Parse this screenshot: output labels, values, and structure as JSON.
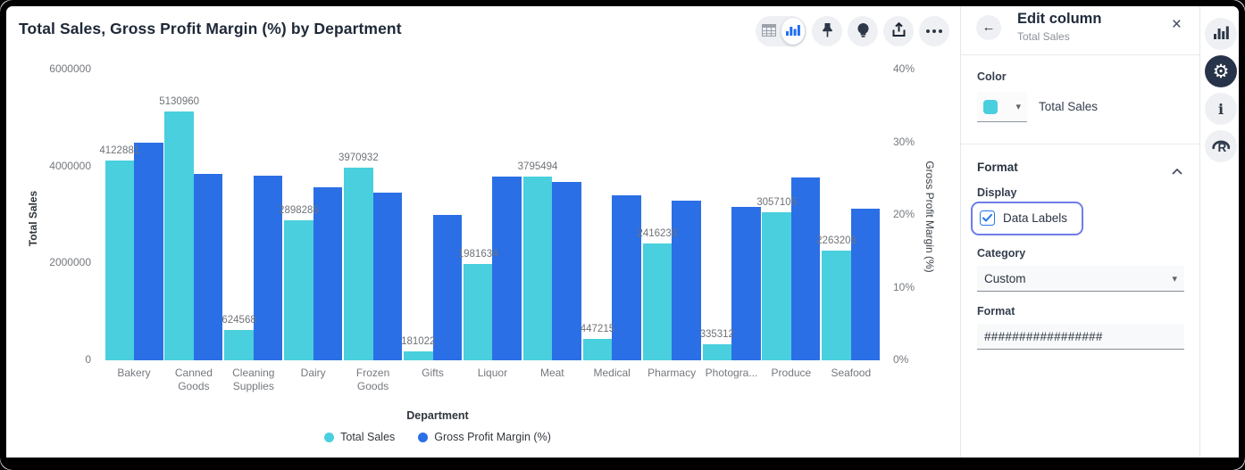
{
  "chart": {
    "title": "Total Sales, Gross Profit Margin (%) by Department",
    "toolbar_icons": [
      "table-icon",
      "bar-chart-icon",
      "pin-icon",
      "lightbulb-icon",
      "share-icon",
      "ellipsis-icon"
    ]
  },
  "chart_data": {
    "type": "bar",
    "title": "Total Sales, Gross Profit Margin (%) by Department",
    "categories": [
      "Bakery",
      "Canned Goods",
      "Cleaning Supplies",
      "Dairy",
      "Frozen Goods",
      "Gifts",
      "Liquor",
      "Meat",
      "Medical",
      "Pharmacy",
      "Photogra...",
      "Produce",
      "Seafood"
    ],
    "series": [
      {
        "name": "Total Sales",
        "axis": "left",
        "color": "#49cfde",
        "data_labels": true,
        "values": [
          4122881,
          5130960,
          624568,
          2898285,
          3970932,
          181022,
          1981634,
          3795494,
          447215,
          2416230,
          335312,
          3057105,
          2263205
        ]
      },
      {
        "name": "Gross Profit Margin (%)",
        "axis": "right",
        "color": "#2b6fe6",
        "data_labels": false,
        "values": [
          30,
          25.7,
          25.4,
          23.8,
          23.1,
          20,
          25.3,
          24.6,
          22.7,
          22,
          21.1,
          25.1,
          20.8
        ]
      }
    ],
    "xlabel": "Department",
    "y_left": {
      "label": "Total Sales",
      "max": 6000000,
      "ticks": [
        {
          "label": "6000000",
          "value": 6000000
        },
        {
          "label": "4000000",
          "value": 4000000
        },
        {
          "label": "2000000",
          "value": 2000000
        },
        {
          "label": "0",
          "value": 0
        }
      ]
    },
    "y_right": {
      "label": "Gross Profit Margin (%)",
      "max": 40,
      "ticks": [
        {
          "label": "40%",
          "value": 40
        },
        {
          "label": "30%",
          "value": 30
        },
        {
          "label": "20%",
          "value": 20
        },
        {
          "label": "10%",
          "value": 10
        },
        {
          "label": "0%",
          "value": 0
        }
      ]
    },
    "legend": [
      {
        "label": "Total Sales",
        "color": "#49cfde"
      },
      {
        "label": "Gross Profit Margin (%)",
        "color": "#2b6fe6"
      }
    ],
    "grid": false,
    "legend_position": "bottom"
  },
  "panel": {
    "title": "Edit column",
    "subtitle": "Total Sales",
    "color": {
      "heading": "Color",
      "swatch_color": "#49cfde",
      "value_label": "Total Sales"
    },
    "format": {
      "heading": "Format",
      "display_heading": "Display",
      "data_labels_label": "Data Labels",
      "data_labels_checked": true,
      "category_heading": "Category",
      "category_value": "Custom",
      "format_heading": "Format",
      "format_value": "#################"
    }
  },
  "rail": {
    "items": [
      {
        "icon": "bar-chart-icon",
        "active": false
      },
      {
        "icon": "gear-icon",
        "active": true
      },
      {
        "icon": "info-icon",
        "active": false
      },
      {
        "icon": "r-logo-icon",
        "active": false
      }
    ]
  }
}
